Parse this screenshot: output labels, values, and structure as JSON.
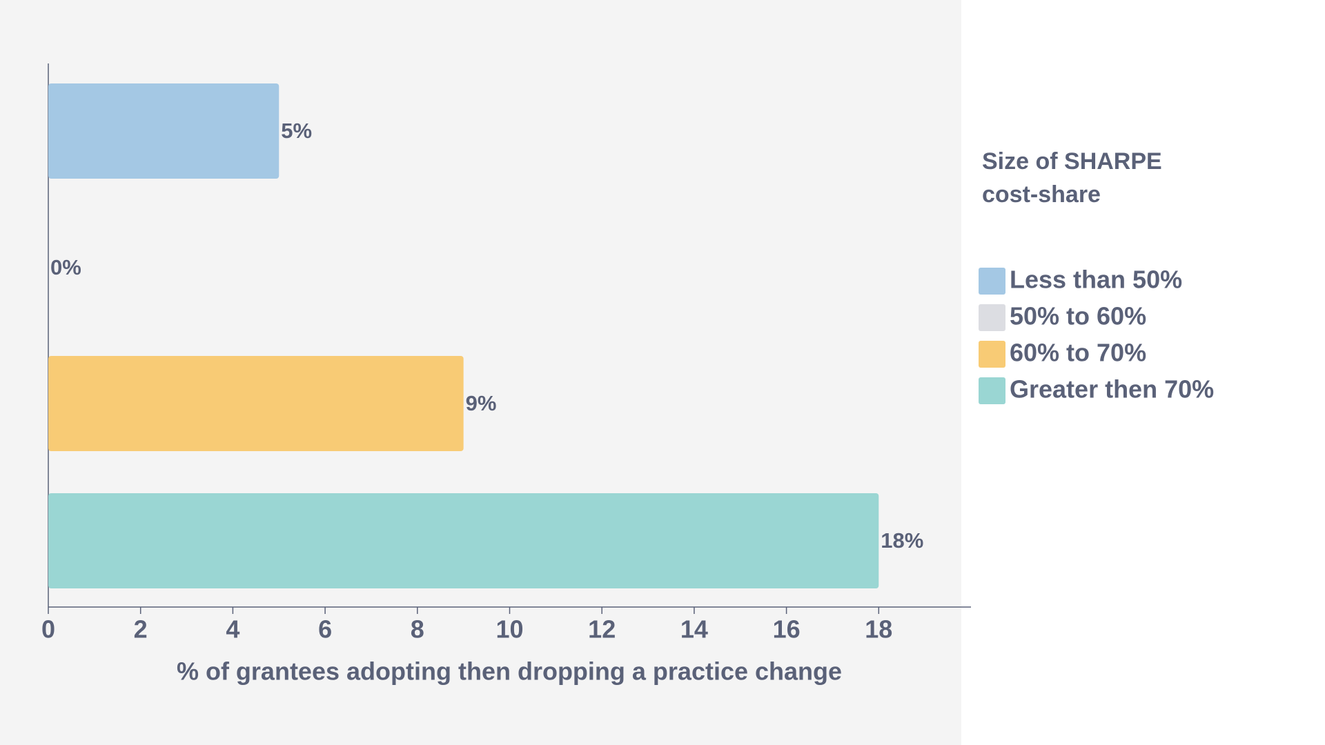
{
  "chart_data": {
    "type": "bar",
    "orientation": "horizontal",
    "xlabel": "% of grantees adopting then dropping a practice change",
    "legend_title": "Size of SHARPE cost-share",
    "legend": "right",
    "series": [
      {
        "name": "Less than 50%",
        "color": "#a4c8e4",
        "values": [
          5
        ],
        "value_labels": [
          "5%"
        ]
      },
      {
        "name": "50% to 60%",
        "color": "#dcdde2",
        "values": [
          0
        ],
        "value_labels": [
          "0%"
        ]
      },
      {
        "name": "60% to 70%",
        "color": "#f8cb75",
        "values": [
          9
        ],
        "value_labels": [
          "9%"
        ]
      },
      {
        "name": "Greater then 70%",
        "color": "#9ad6d3",
        "values": [
          18
        ],
        "value_labels": [
          "18%"
        ]
      }
    ],
    "xlim": [
      0,
      20
    ],
    "xticks": [
      0,
      2,
      4,
      6,
      8,
      10,
      12,
      14,
      16,
      18
    ]
  }
}
